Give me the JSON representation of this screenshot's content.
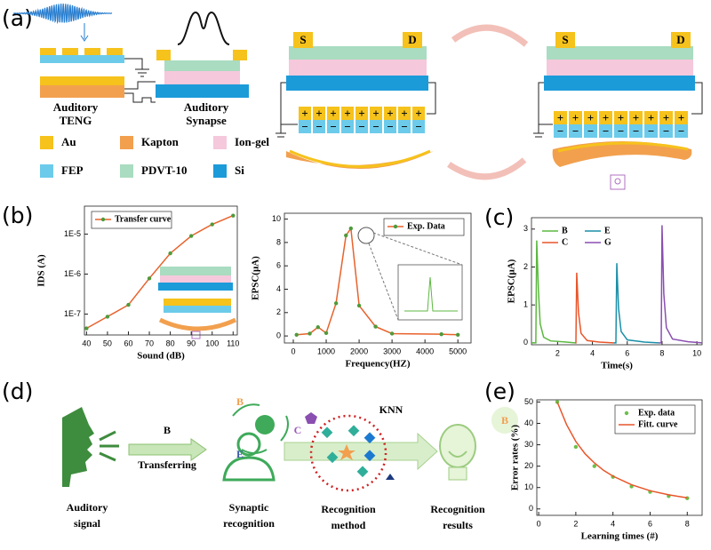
{
  "panel_labels": [
    "(a)",
    "(b)",
    "(c)",
    "(d)",
    "(e)"
  ],
  "panel_a": {
    "electrodes": [
      "S",
      "D"
    ],
    "teng_label": [
      "Auditory",
      "TENG"
    ],
    "synapse_label": [
      "Auditory",
      "Synapse"
    ],
    "materials": [
      {
        "name": "Au",
        "color": "#f6c21c"
      },
      {
        "name": "Kapton",
        "color": "#f2a04e"
      },
      {
        "name": "Ion-gel",
        "color": "#f5c8dc"
      },
      {
        "name": "FEP",
        "color": "#6ccbea"
      },
      {
        "name": "PDVT-10",
        "color": "#a9dcc0"
      },
      {
        "name": "Si",
        "color": "#1c9bd9"
      }
    ]
  },
  "panel_d": {
    "input_label": [
      "Auditory",
      "signal"
    ],
    "letter": "B",
    "arrow_label": "Transferring",
    "classes": [
      "B",
      "C",
      "E"
    ],
    "synaptic_label": [
      "Synaptic",
      "recognition"
    ],
    "knn": "KNN",
    "method_label": [
      "Recognition",
      "method"
    ],
    "result_label": [
      "Recognition",
      "results"
    ],
    "result_letter": "B"
  },
  "chart_data": [
    {
      "type": "line",
      "xlabel": "Sound (dB)",
      "ylabel": "IDS (A)",
      "x": [
        40,
        50,
        60,
        70,
        80,
        90,
        100,
        110
      ],
      "series": [
        {
          "name": "Transfer curve",
          "color": "#e8622c",
          "marker_color": "#4f9a3a",
          "values": [
            4.4e-08,
            8.6e-08,
            1.7e-07,
            7.8e-07,
            3.3e-06,
            9e-06,
            1.75e-05,
            2.9e-05
          ]
        }
      ],
      "xlim": [
        39,
        112
      ],
      "ylim": [
        3e-08,
        5e-05
      ],
      "yscale": "log",
      "xticks": [
        40,
        50,
        60,
        70,
        80,
        90,
        100,
        110
      ],
      "yticks": [
        {
          "value": 1e-07,
          "label": "1E-7"
        },
        {
          "value": 1e-06,
          "label": "1E-6"
        },
        {
          "value": 1e-05,
          "label": "1E-5"
        }
      ],
      "legend_position": "upper left"
    },
    {
      "type": "line",
      "xlabel": "Frequency(HZ)",
      "ylabel": "EPSC(μA)",
      "x": [
        100,
        500,
        750,
        1000,
        1300,
        1600,
        1750,
        2000,
        2500,
        3000,
        4500,
        5000
      ],
      "series": [
        {
          "name": "Exp. Data",
          "color": "#e8622c",
          "marker_color": "#4f9a3a",
          "values": [
            0.1,
            0.2,
            0.75,
            0.25,
            2.8,
            8.6,
            9.2,
            2.6,
            0.8,
            0.2,
            0.15,
            0.1
          ]
        }
      ],
      "xlim": [
        -270,
        5400
      ],
      "ylim": [
        -0.6,
        10.5
      ],
      "xticks": [
        0,
        1000,
        2000,
        3000,
        4000,
        5000
      ],
      "yticks": [
        0,
        2,
        4,
        6,
        8,
        10
      ],
      "legend_position": "upper right"
    },
    {
      "type": "line",
      "xlabel": "Time(s)",
      "ylabel": "EPSC(μA)",
      "series": [
        {
          "name": "B",
          "color": "#5cb840",
          "x": [
            0.5,
            0.75,
            0.8,
            0.9,
            1.0,
            1.2,
            1.6,
            2.5,
            3.0
          ],
          "values": [
            0,
            0,
            2.7,
            1.4,
            0.5,
            0.15,
            0.05,
            0.02,
            0
          ]
        },
        {
          "name": "C",
          "color": "#e8552a",
          "x": [
            3.0,
            3.05,
            3.1,
            3.2,
            3.35,
            3.7,
            4.4,
            5.2
          ],
          "values": [
            0,
            0,
            1.85,
            0.8,
            0.25,
            0.06,
            0.02,
            0
          ]
        },
        {
          "name": "E",
          "color": "#1a8fa8",
          "x": [
            5.2,
            5.35,
            5.4,
            5.5,
            5.65,
            6.0,
            7.0,
            7.8
          ],
          "values": [
            0,
            0,
            2.1,
            0.9,
            0.3,
            0.08,
            0.02,
            0
          ]
        },
        {
          "name": "G",
          "color": "#8a4fb0",
          "x": [
            7.8,
            7.95,
            8.0,
            8.1,
            8.25,
            8.6,
            9.5,
            10.3
          ],
          "values": [
            0,
            0,
            3.1,
            1.3,
            0.4,
            0.1,
            0.03,
            0
          ]
        }
      ],
      "xlim": [
        0.5,
        10.3
      ],
      "ylim": [
        -0.05,
        3.3
      ],
      "xticks": [
        2,
        4,
        6,
        8,
        10
      ],
      "yticks": [
        0,
        1,
        2,
        3
      ],
      "legend_position": "upper left",
      "legend_columns": 2
    },
    {
      "type": "line",
      "xlabel": "Learning times (#)",
      "ylabel": "Error rates (%)",
      "series": [
        {
          "name": "Exp. data",
          "mode": "markers",
          "marker_color": "#6cc04a",
          "x": [
            1,
            2,
            3,
            4,
            5,
            6,
            7,
            8
          ],
          "values": [
            50,
            29,
            20,
            15,
            10.5,
            8,
            6,
            5
          ]
        },
        {
          "name": "Fitt. curve",
          "mode": "line",
          "color": "#e8552a",
          "x": [
            1,
            1.5,
            2,
            2.5,
            3,
            3.5,
            4,
            5,
            6,
            7,
            8
          ],
          "values": [
            50,
            39.5,
            31.5,
            25.8,
            21.5,
            18,
            15.3,
            11.3,
            8.5,
            6.6,
            5.2
          ]
        }
      ],
      "xlim": [
        -0.1,
        8.8
      ],
      "ylim": [
        -3,
        51
      ],
      "xticks": [
        0,
        2,
        4,
        6,
        8
      ],
      "yticks": [
        0,
        10,
        20,
        30,
        40,
        50
      ],
      "legend_position": "upper right"
    }
  ]
}
